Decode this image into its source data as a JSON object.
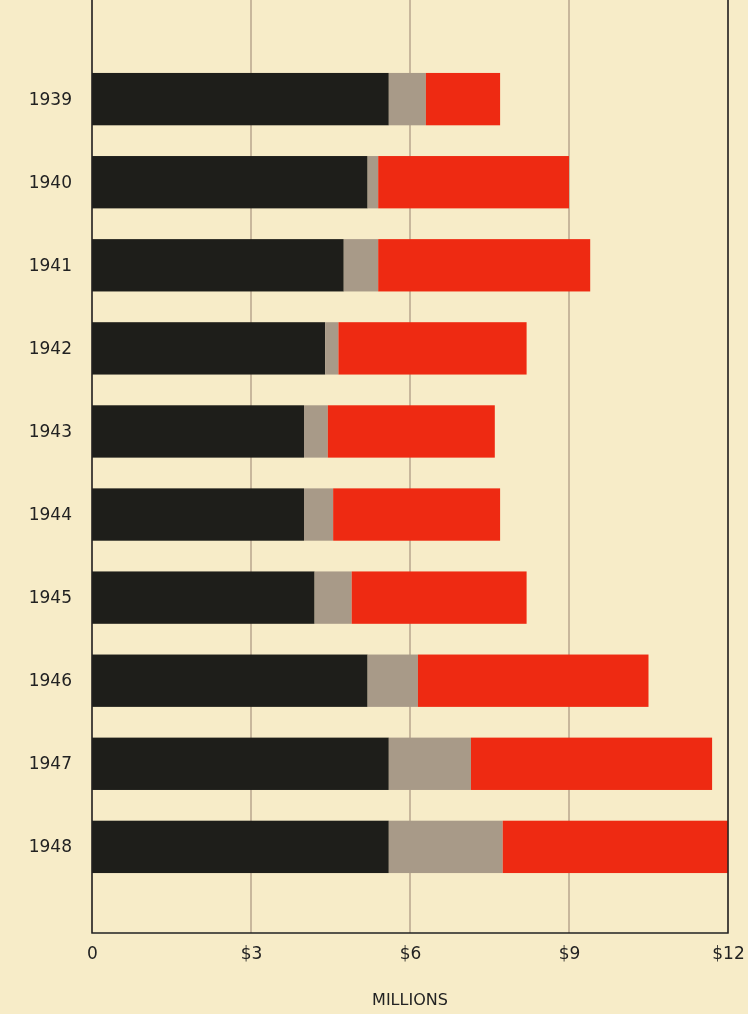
{
  "chart_data": {
    "type": "bar",
    "orientation": "horizontal",
    "stacked": true,
    "xlabel": "MILLIONS",
    "categories": [
      "1939",
      "1940",
      "1941",
      "1942",
      "1943",
      "1944",
      "1945",
      "1946",
      "1947",
      "1948"
    ],
    "series": [
      {
        "color": "#1e1e1a",
        "values": [
          5.6,
          5.2,
          4.75,
          4.4,
          4.0,
          4.0,
          4.2,
          5.2,
          5.6,
          5.6
        ]
      },
      {
        "color": "#a89a88",
        "values": [
          0.7,
          0.2,
          0.65,
          0.25,
          0.45,
          0.55,
          0.7,
          0.95,
          1.55,
          2.15
        ]
      },
      {
        "color": "#ee2a12",
        "values": [
          1.4,
          3.6,
          4.0,
          3.55,
          3.15,
          3.15,
          3.3,
          4.35,
          4.55,
          4.25
        ]
      }
    ],
    "xlim": [
      0,
      12
    ],
    "xticks": [
      0,
      {
        "value": 3,
        "label": "$3"
      },
      {
        "value": 6,
        "label": "$6"
      },
      {
        "value": 9,
        "label": "$9"
      },
      {
        "value": 12,
        "label": "$12"
      }
    ],
    "grid": "x"
  }
}
